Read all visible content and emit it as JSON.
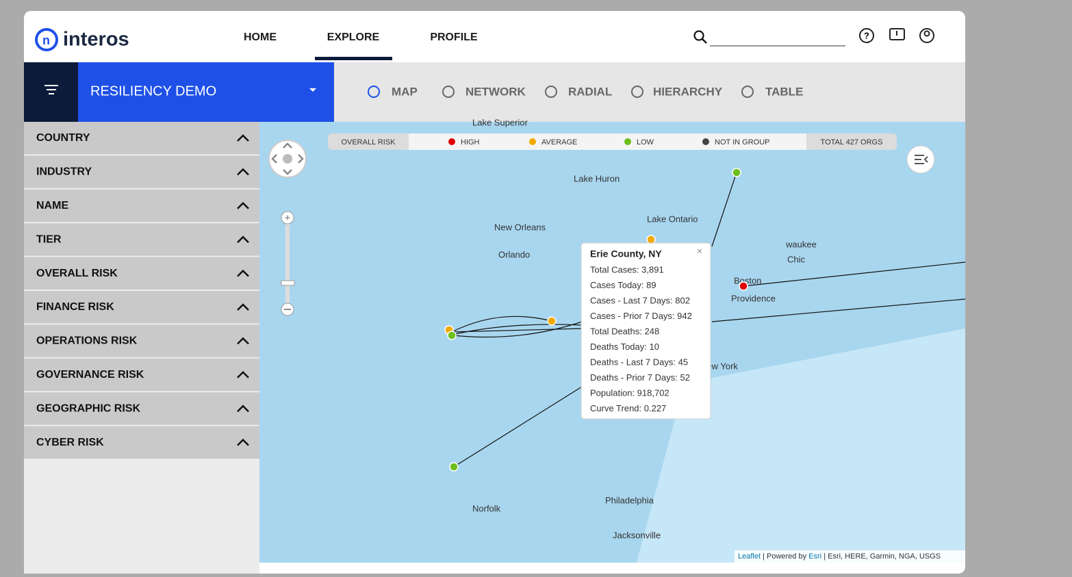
{
  "header": {
    "logo": "interos",
    "nav": [
      {
        "label": "HOME"
      },
      {
        "label": "EXPLORE",
        "active": true
      },
      {
        "label": "PROFILE"
      }
    ]
  },
  "toolbar": {
    "filter_title": "RESILIENCY DEMO",
    "views": [
      {
        "label": "MAP",
        "active": true
      },
      {
        "label": "NETWORK"
      },
      {
        "label": "RADIAL"
      },
      {
        "label": "HIERARCHY"
      },
      {
        "label": "TABLE"
      }
    ]
  },
  "sidebar": {
    "filters": [
      "COUNTRY",
      "INDUSTRY",
      "NAME",
      "TIER",
      "OVERALL RISK",
      "FINANCE RISK",
      "OPERATIONS RISK",
      "GOVERNANCE RISK",
      "GEOGRAPHIC RISK",
      "CYBER RISK"
    ]
  },
  "map": {
    "legend": {
      "title": "OVERALL RISK",
      "items": [
        {
          "label": "HIGH",
          "color": "#e00000"
        },
        {
          "label": "AVERAGE",
          "color": "#f2a900"
        },
        {
          "label": "LOW",
          "color": "#6cbf1a"
        },
        {
          "label": "NOT IN GROUP",
          "color": "#444444"
        }
      ],
      "total": "TOTAL 427 ORGS"
    },
    "popup": {
      "title": "Erie County, NY",
      "lines": [
        "Total Cases: 3,891",
        "Cases Today: 89",
        "Cases - Last 7 Days: 802",
        "Cases - Prior 7 Days: 942",
        "Total Deaths: 248",
        "Deaths Today: 10",
        "Deaths - Last 7 Days: 45",
        "Deaths - Prior 7 Days: 52",
        "Population: 918,702",
        "Curve Trend: 0.227"
      ]
    },
    "place_labels": [
      "Lake Superior",
      "Lake Huron",
      "Lake Ontario",
      "waukee",
      "Chic",
      "Boston",
      "Providence",
      "New York",
      "Philadelphia",
      "Norfolk",
      "Jacksonville",
      "New Orleans",
      "Orlando"
    ],
    "attribution": {
      "leaflet": "Leaflet",
      "powered": "| Powered by",
      "esri": "Esri",
      "sources": "| Esri, HERE, Garmin, NGA, USGS"
    }
  }
}
